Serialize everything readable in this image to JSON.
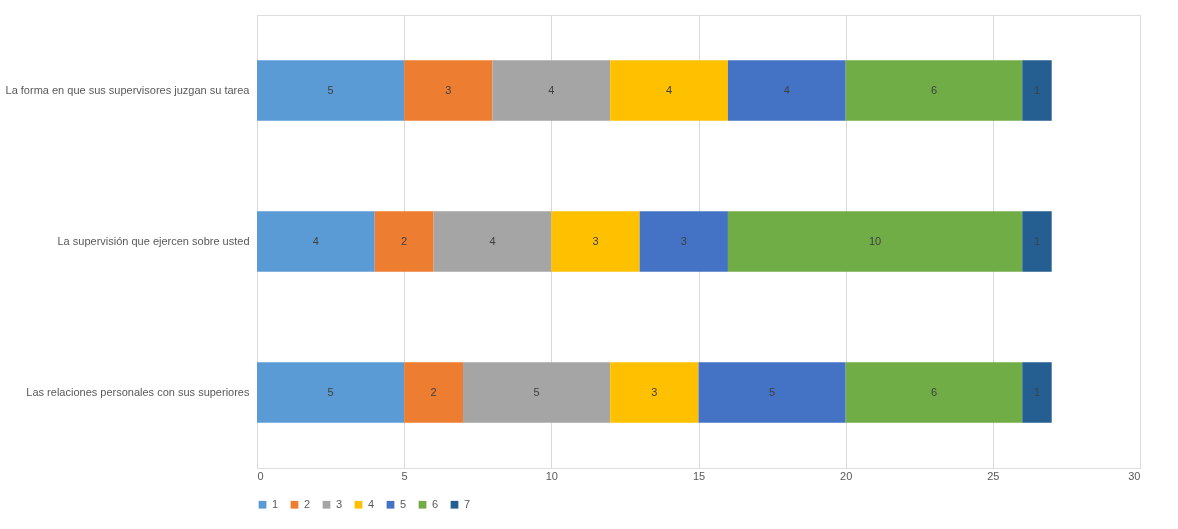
{
  "chart_data": {
    "type": "bar",
    "orientation": "horizontal",
    "stacked": true,
    "categories": [
      "La forma en que sus supervisores juzgan su tarea",
      "La supervisión que ejercen sobre usted",
      "Las relaciones personales con sus superiores"
    ],
    "series": [
      {
        "name": "1",
        "color": "#5b9bd5",
        "values": [
          5,
          4,
          5
        ]
      },
      {
        "name": "2",
        "color": "#ed7d31",
        "values": [
          3,
          2,
          2
        ]
      },
      {
        "name": "3",
        "color": "#a5a5a5",
        "values": [
          4,
          4,
          5
        ]
      },
      {
        "name": "4",
        "color": "#ffc000",
        "values": [
          4,
          3,
          3
        ]
      },
      {
        "name": "5",
        "color": "#4472c4",
        "values": [
          4,
          3,
          5
        ]
      },
      {
        "name": "6",
        "color": "#70ad47",
        "values": [
          6,
          10,
          6
        ]
      },
      {
        "name": "7",
        "color": "#255e91",
        "values": [
          1,
          1,
          1
        ]
      }
    ],
    "xlim": [
      0,
      30
    ],
    "xticks": [
      0,
      5,
      10,
      15,
      20,
      25,
      30
    ],
    "grid": "x",
    "legend": "bottom",
    "data_labels": true
  }
}
